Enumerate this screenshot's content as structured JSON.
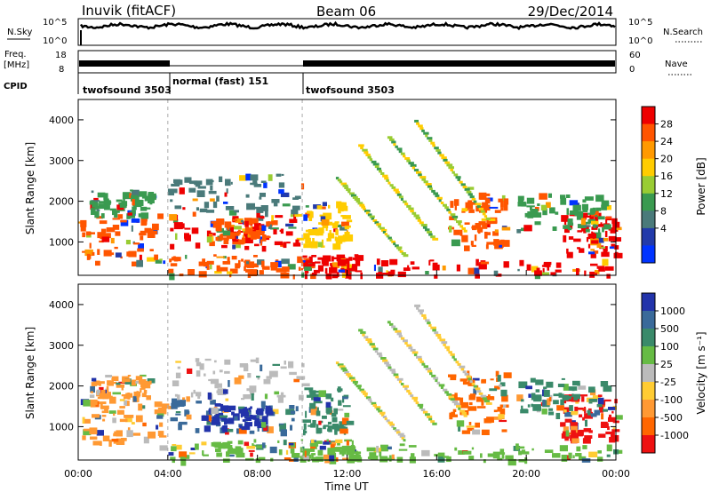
{
  "header": {
    "station": "Inuvik (fitACF)",
    "beam": "Beam 06",
    "date": "29/Dec/2014"
  },
  "top_panels": {
    "nsky_label": "N.Sky",
    "nsky_ticks": [
      "10^5",
      "10^0"
    ],
    "nsearch_label": "N.Search",
    "nsearch_ticks": [
      "10^5",
      "10^0"
    ],
    "freq_label_1": "Freq.",
    "freq_label_2": "[MHz]",
    "freq_ticks": [
      "18",
      "8"
    ],
    "nave_label": "Nave",
    "nave_ticks": [
      "60",
      "0"
    ],
    "cpid_label": "CPID",
    "cpid_segments": [
      {
        "label": "twofsound 3503",
        "start_hour": 0,
        "end_hour": 4
      },
      {
        "label": "normal (fast) 151",
        "start_hour": 4,
        "end_hour": 10
      },
      {
        "label": "twofsound 3503",
        "start_hour": 10,
        "end_hour": 24
      }
    ]
  },
  "axes": {
    "y_label": "Slant Range [km]",
    "y_ticks": [
      "4000",
      "3000",
      "2000",
      "1000"
    ],
    "x_label": "Time UT",
    "x_ticks": [
      "00:00",
      "04:00",
      "08:00",
      "12:00",
      "16:00",
      "20:00",
      "00:00"
    ]
  },
  "colorbars": {
    "power": {
      "label": "Power [dB]",
      "ticks": [
        "28",
        "24",
        "20",
        "16",
        "12",
        "8",
        "4"
      ],
      "colors": [
        "#ee0000",
        "#ff5500",
        "#ff9900",
        "#ffcc00",
        "#99cc33",
        "#3a9a50",
        "#4a7a7a",
        "#223aaa",
        "#0033ff"
      ]
    },
    "velocity": {
      "label": "Velocity [m s⁻¹]",
      "ticks": [
        "1000",
        "500",
        "100",
        "25",
        "-25",
        "-100",
        "-500",
        "-1000"
      ],
      "colors": [
        "#2233aa",
        "#3a6a9a",
        "#3a8a6a",
        "#66bb44",
        "#bbbbbb",
        "#ffcc33",
        "#ff9933",
        "#ff6600",
        "#ee1111"
      ]
    }
  },
  "chart_data": {
    "type": "heatmap",
    "x_range_hours": [
      0,
      24
    ],
    "y_range_km": [
      180,
      4500
    ],
    "panels": [
      "power",
      "velocity"
    ],
    "regions": [
      {
        "t0": 0.0,
        "t1": 3.8,
        "r0": 500,
        "r1": 1700,
        "power": "#ff5500",
        "vel": "#ff9933"
      },
      {
        "t0": 0.5,
        "t1": 3.2,
        "r0": 1700,
        "r1": 2300,
        "power": "#3a9a50",
        "vel": "#ff9933"
      },
      {
        "t0": 4.0,
        "t1": 9.8,
        "r0": 900,
        "r1": 1700,
        "power": "#ee0000",
        "vel": "#3a6a9a"
      },
      {
        "t0": 5.5,
        "t1": 8.5,
        "r0": 1000,
        "r1": 1600,
        "power": "#ff5500",
        "vel": "#2233aa"
      },
      {
        "t0": 4.0,
        "t1": 10.0,
        "r0": 1700,
        "r1": 2700,
        "power": "#4a7a7a",
        "vel": "#bbbbbb"
      },
      {
        "t0": 4.0,
        "t1": 10.0,
        "r0": 200,
        "r1": 700,
        "power": "#ff5500",
        "vel": "#66bb44"
      },
      {
        "t0": 10.0,
        "t1": 12.5,
        "r0": 200,
        "r1": 700,
        "power": "#ee0000",
        "vel": "#66bb44"
      },
      {
        "t0": 12.5,
        "t1": 24.0,
        "r0": 200,
        "r1": 600,
        "power": "#ee0000",
        "vel": "#66bb44"
      },
      {
        "t0": 10.0,
        "t1": 12.0,
        "r0": 900,
        "r1": 2000,
        "power": "#ffcc00",
        "vel": "#3a8a6a"
      },
      {
        "t0": 16.5,
        "t1": 19.0,
        "r0": 900,
        "r1": 2400,
        "power": "#ff5500",
        "vel": "#ff6600"
      },
      {
        "t0": 21.5,
        "t1": 24.0,
        "r0": 700,
        "r1": 1800,
        "power": "#ee0000",
        "vel": "#ee1111"
      },
      {
        "t0": 19.5,
        "t1": 23.5,
        "r0": 1300,
        "r1": 2200,
        "power": "#3a9a50",
        "vel": "#3a8a6a"
      }
    ],
    "streaks": [
      {
        "t0": 11.5,
        "r0": 2600,
        "t1": 14.5,
        "r1": 700
      },
      {
        "t0": 12.5,
        "r0": 3400,
        "t1": 15.8,
        "r1": 1100
      },
      {
        "t0": 13.8,
        "r0": 3600,
        "t1": 17.2,
        "r1": 1300
      },
      {
        "t0": 15.0,
        "r0": 4000,
        "t1": 18.2,
        "r1": 1600
      }
    ]
  }
}
